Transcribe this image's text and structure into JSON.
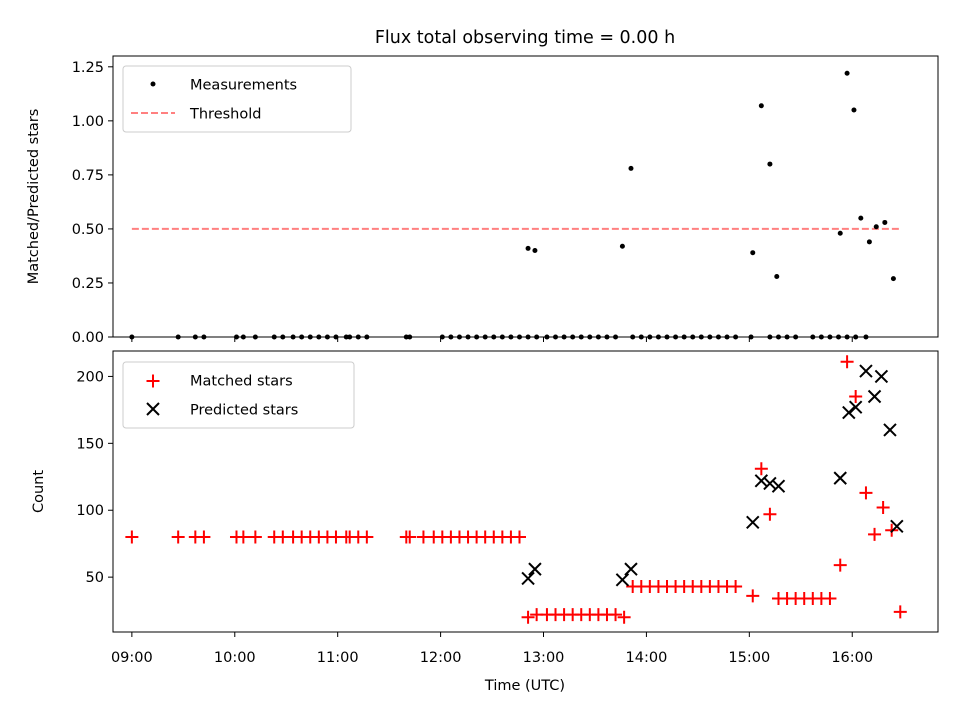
{
  "title": "Flux total observing time = 0.00 h",
  "chart_data": [
    {
      "type": "scatter",
      "ylabel": "Matched/Predicted stars",
      "xlim": [
        "08:49",
        "16:50"
      ],
      "ylim": [
        0,
        1.3
      ],
      "yticks": [
        0.0,
        0.25,
        0.5,
        0.75,
        1.0,
        1.25
      ],
      "ytick_labels": [
        "0.00",
        "0.25",
        "0.50",
        "0.75",
        "1.00",
        "1.25"
      ],
      "legend": {
        "placement": "top-left",
        "entries": [
          "Measurements",
          "Threshold"
        ]
      },
      "threshold": {
        "name": "Threshold",
        "y": 0.5,
        "x_range": [
          "09:00",
          "16:28"
        ],
        "color": "#ff8080"
      },
      "series": [
        {
          "name": "Measurements",
          "color": "#000000",
          "points": [
            [
              "09:00",
              0
            ],
            [
              "09:27",
              0
            ],
            [
              "09:37",
              0
            ],
            [
              "09:42",
              0
            ],
            [
              "10:01",
              0
            ],
            [
              "10:05",
              0
            ],
            [
              "10:12",
              0
            ],
            [
              "10:23",
              0
            ],
            [
              "10:28",
              0
            ],
            [
              "10:34",
              0
            ],
            [
              "10:39",
              0
            ],
            [
              "10:44",
              0
            ],
            [
              "10:49",
              0
            ],
            [
              "10:54",
              0
            ],
            [
              "10:59",
              0
            ],
            [
              "11:05",
              0
            ],
            [
              "11:07",
              0
            ],
            [
              "11:12",
              0
            ],
            [
              "11:17",
              0
            ],
            [
              "11:40",
              0
            ],
            [
              "11:42",
              0
            ],
            [
              "12:01",
              0
            ],
            [
              "12:06",
              0
            ],
            [
              "12:11",
              0
            ],
            [
              "12:16",
              0
            ],
            [
              "12:21",
              0
            ],
            [
              "12:26",
              0
            ],
            [
              "12:31",
              0
            ],
            [
              "12:36",
              0
            ],
            [
              "12:41",
              0
            ],
            [
              "12:46",
              0
            ],
            [
              "12:51",
              0
            ],
            [
              "12:56",
              0
            ],
            [
              "13:02",
              0
            ],
            [
              "13:07",
              0
            ],
            [
              "13:12",
              0
            ],
            [
              "13:17",
              0
            ],
            [
              "13:22",
              0
            ],
            [
              "13:27",
              0
            ],
            [
              "13:32",
              0
            ],
            [
              "13:37",
              0
            ],
            [
              "13:42",
              0
            ],
            [
              "13:52",
              0
            ],
            [
              "13:57",
              0
            ],
            [
              "14:02",
              0
            ],
            [
              "14:07",
              0
            ],
            [
              "14:12",
              0
            ],
            [
              "14:17",
              0
            ],
            [
              "14:22",
              0
            ],
            [
              "14:27",
              0
            ],
            [
              "14:32",
              0
            ],
            [
              "14:37",
              0
            ],
            [
              "14:42",
              0
            ],
            [
              "14:47",
              0
            ],
            [
              "14:52",
              0
            ],
            [
              "15:01",
              0
            ],
            [
              "15:12",
              0
            ],
            [
              "15:17",
              0
            ],
            [
              "15:22",
              0
            ],
            [
              "15:27",
              0
            ],
            [
              "15:37",
              0
            ],
            [
              "15:42",
              0
            ],
            [
              "15:47",
              0
            ],
            [
              "15:52",
              0
            ],
            [
              "15:57",
              0
            ],
            [
              "16:02",
              0
            ],
            [
              "16:08",
              0
            ],
            [
              "12:51",
              0.41
            ],
            [
              "12:55",
              0.4
            ],
            [
              "13:46",
              0.42
            ],
            [
              "13:51",
              0.78
            ],
            [
              "15:02",
              0.39
            ],
            [
              "15:07",
              1.07
            ],
            [
              "15:12",
              0.8
            ],
            [
              "15:16",
              0.28
            ],
            [
              "15:53",
              0.48
            ],
            [
              "15:57",
              1.22
            ],
            [
              "16:01",
              1.05
            ],
            [
              "16:05",
              0.55
            ],
            [
              "16:10",
              0.44
            ],
            [
              "16:14",
              0.51
            ],
            [
              "16:19",
              0.53
            ],
            [
              "16:24",
              0.27
            ]
          ]
        }
      ]
    },
    {
      "type": "scatter",
      "xlabel": "Time (UTC)",
      "ylabel": "Count",
      "xlim": [
        "08:49",
        "16:50"
      ],
      "ylim": [
        9,
        219
      ],
      "xticks": [
        "09:00",
        "10:00",
        "11:00",
        "12:00",
        "13:00",
        "14:00",
        "15:00",
        "16:00"
      ],
      "yticks": [
        50,
        100,
        150,
        200
      ],
      "ytick_labels": [
        "50",
        "100",
        "150",
        "200"
      ],
      "legend": {
        "placement": "top-left",
        "entries": [
          "Matched stars",
          "Predicted stars"
        ]
      },
      "series": [
        {
          "name": "Matched stars",
          "marker": "plus",
          "color": "#ff0000",
          "points": [
            [
              "09:00",
              80
            ],
            [
              "09:27",
              80
            ],
            [
              "09:37",
              80
            ],
            [
              "09:42",
              80
            ],
            [
              "10:01",
              80
            ],
            [
              "10:05",
              80
            ],
            [
              "10:12",
              80
            ],
            [
              "10:23",
              80
            ],
            [
              "10:28",
              80
            ],
            [
              "10:34",
              80
            ],
            [
              "10:39",
              80
            ],
            [
              "10:44",
              80
            ],
            [
              "10:49",
              80
            ],
            [
              "10:54",
              80
            ],
            [
              "10:59",
              80
            ],
            [
              "11:05",
              80
            ],
            [
              "11:07",
              80
            ],
            [
              "11:12",
              80
            ],
            [
              "11:17",
              80
            ],
            [
              "11:40",
              80
            ],
            [
              "11:42",
              80
            ],
            [
              "11:50",
              80
            ],
            [
              "11:56",
              80
            ],
            [
              "12:01",
              80
            ],
            [
              "12:06",
              80
            ],
            [
              "12:11",
              80
            ],
            [
              "12:16",
              80
            ],
            [
              "12:21",
              80
            ],
            [
              "12:26",
              80
            ],
            [
              "12:31",
              80
            ],
            [
              "12:36",
              80
            ],
            [
              "12:41",
              80
            ],
            [
              "12:46",
              80
            ],
            [
              "12:51",
              20
            ],
            [
              "12:56",
              22
            ],
            [
              "13:02",
              22
            ],
            [
              "13:07",
              22
            ],
            [
              "13:12",
              22
            ],
            [
              "13:17",
              22
            ],
            [
              "13:22",
              22
            ],
            [
              "13:27",
              22
            ],
            [
              "13:32",
              22
            ],
            [
              "13:37",
              22
            ],
            [
              "13:42",
              22
            ],
            [
              "13:47",
              20
            ],
            [
              "13:52",
              43
            ],
            [
              "13:57",
              43
            ],
            [
              "14:02",
              43
            ],
            [
              "14:07",
              43
            ],
            [
              "14:12",
              43
            ],
            [
              "14:17",
              43
            ],
            [
              "14:22",
              43
            ],
            [
              "14:27",
              43
            ],
            [
              "14:32",
              43
            ],
            [
              "14:37",
              43
            ],
            [
              "14:42",
              43
            ],
            [
              "14:47",
              43
            ],
            [
              "14:52",
              43
            ],
            [
              "15:02",
              36
            ],
            [
              "15:07",
              131
            ],
            [
              "15:12",
              97
            ],
            [
              "15:17",
              34
            ],
            [
              "15:22",
              34
            ],
            [
              "15:27",
              34
            ],
            [
              "15:32",
              34
            ],
            [
              "15:37",
              34
            ],
            [
              "15:42",
              34
            ],
            [
              "15:47",
              34
            ],
            [
              "15:53",
              59
            ],
            [
              "15:57",
              211
            ],
            [
              "16:02",
              185
            ],
            [
              "16:08",
              113
            ],
            [
              "16:13",
              82
            ],
            [
              "16:18",
              102
            ],
            [
              "16:23",
              85
            ],
            [
              "16:28",
              24
            ]
          ]
        },
        {
          "name": "Predicted stars",
          "marker": "x",
          "color": "#000000",
          "points": [
            [
              "12:51",
              49
            ],
            [
              "12:55",
              56
            ],
            [
              "13:46",
              48
            ],
            [
              "13:51",
              56
            ],
            [
              "15:02",
              91
            ],
            [
              "15:07",
              122
            ],
            [
              "15:12",
              120
            ],
            [
              "15:17",
              118
            ],
            [
              "15:53",
              124
            ],
            [
              "15:58",
              173
            ],
            [
              "16:02",
              177
            ],
            [
              "16:08",
              204
            ],
            [
              "16:13",
              185
            ],
            [
              "16:17",
              200
            ],
            [
              "16:22",
              160
            ],
            [
              "16:26",
              88
            ]
          ]
        }
      ]
    }
  ]
}
